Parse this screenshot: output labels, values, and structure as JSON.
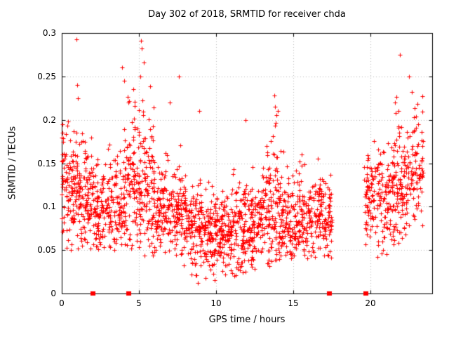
{
  "chart_data": {
    "type": "scatter",
    "title": "Day 302 of 2018, SRMTID for receiver chda",
    "xlabel": "GPS time / hours",
    "ylabel": "SRMTID / TECUs",
    "xlim": [
      0,
      24
    ],
    "ylim": [
      0,
      0.3
    ],
    "xticks": [
      0,
      5,
      10,
      15,
      20
    ],
    "xtick_labels": [
      "0",
      "5",
      "10",
      "15",
      "20"
    ],
    "yticks": [
      0,
      0.05,
      0.1,
      0.15,
      0.2,
      0.25,
      0.3
    ],
    "ytick_labels": [
      "0",
      "0.05",
      "0.1",
      "0.15",
      "0.2",
      "0.25",
      "0.3"
    ],
    "grid": true,
    "legend_position": "none",
    "marker": "plus",
    "marker_color": "#ff0000",
    "grid_color": "#b8b8b8",
    "border_color": "#000000",
    "seed": 302,
    "clusters": [
      {
        "x0": 0.0,
        "x1": 1.0,
        "n": 120,
        "mean": 0.125,
        "sd": 0.035,
        "ymin": 0.045,
        "ymax": 0.2
      },
      {
        "x0": 1.0,
        "x1": 2.0,
        "n": 115,
        "mean": 0.115,
        "sd": 0.035,
        "ymin": 0.05,
        "ymax": 0.22
      },
      {
        "x0": 2.0,
        "x1": 3.0,
        "n": 100,
        "mean": 0.1,
        "sd": 0.03,
        "ymin": 0.05,
        "ymax": 0.17
      },
      {
        "x0": 3.0,
        "x1": 4.0,
        "n": 100,
        "mean": 0.105,
        "sd": 0.033,
        "ymin": 0.05,
        "ymax": 0.22
      },
      {
        "x0": 4.0,
        "x1": 5.0,
        "n": 115,
        "mean": 0.13,
        "sd": 0.045,
        "ymin": 0.05,
        "ymax": 0.26
      },
      {
        "x0": 5.0,
        "x1": 6.0,
        "n": 115,
        "mean": 0.12,
        "sd": 0.05,
        "ymin": 0.04,
        "ymax": 0.29
      },
      {
        "x0": 6.0,
        "x1": 7.0,
        "n": 100,
        "mean": 0.092,
        "sd": 0.028,
        "ymin": 0.04,
        "ymax": 0.17
      },
      {
        "x0": 7.0,
        "x1": 8.0,
        "n": 100,
        "mean": 0.09,
        "sd": 0.03,
        "ymin": 0.03,
        "ymax": 0.18
      },
      {
        "x0": 8.0,
        "x1": 9.0,
        "n": 110,
        "mean": 0.08,
        "sd": 0.028,
        "ymin": 0.02,
        "ymax": 0.16
      },
      {
        "x0": 9.0,
        "x1": 10.0,
        "n": 110,
        "mean": 0.073,
        "sd": 0.024,
        "ymin": 0.02,
        "ymax": 0.15
      },
      {
        "x0": 10.0,
        "x1": 11.0,
        "n": 110,
        "mean": 0.07,
        "sd": 0.023,
        "ymin": 0.025,
        "ymax": 0.14
      },
      {
        "x0": 11.0,
        "x1": 12.0,
        "n": 110,
        "mean": 0.074,
        "sd": 0.027,
        "ymin": 0.02,
        "ymax": 0.16
      },
      {
        "x0": 12.0,
        "x1": 13.0,
        "n": 110,
        "mean": 0.08,
        "sd": 0.03,
        "ymin": 0.03,
        "ymax": 0.2
      },
      {
        "x0": 13.0,
        "x1": 14.0,
        "n": 115,
        "mean": 0.098,
        "sd": 0.04,
        "ymin": 0.03,
        "ymax": 0.23
      },
      {
        "x0": 14.0,
        "x1": 15.0,
        "n": 105,
        "mean": 0.088,
        "sd": 0.032,
        "ymin": 0.03,
        "ymax": 0.18
      },
      {
        "x0": 15.0,
        "x1": 16.0,
        "n": 100,
        "mean": 0.085,
        "sd": 0.028,
        "ymin": 0.04,
        "ymax": 0.16
      },
      {
        "x0": 16.0,
        "x1": 17.0,
        "n": 100,
        "mean": 0.09,
        "sd": 0.028,
        "ymin": 0.04,
        "ymax": 0.16
      },
      {
        "x0": 17.0,
        "x1": 17.5,
        "n": 55,
        "mean": 0.088,
        "sd": 0.025,
        "ymin": 0.04,
        "ymax": 0.14
      },
      {
        "x0": 19.6,
        "x1": 20.3,
        "n": 70,
        "mean": 0.11,
        "sd": 0.035,
        "ymin": 0.05,
        "ymax": 0.18
      },
      {
        "x0": 20.3,
        "x1": 21.3,
        "n": 90,
        "mean": 0.105,
        "sd": 0.035,
        "ymin": 0.04,
        "ymax": 0.19
      },
      {
        "x0": 21.3,
        "x1": 22.3,
        "n": 115,
        "mean": 0.13,
        "sd": 0.04,
        "ymin": 0.05,
        "ymax": 0.23
      },
      {
        "x0": 22.3,
        "x1": 23.4,
        "n": 100,
        "mean": 0.14,
        "sd": 0.038,
        "ymin": 0.06,
        "ymax": 0.23
      }
    ],
    "outliers": [
      [
        0.95,
        0.293
      ],
      [
        1.0,
        0.24
      ],
      [
        1.05,
        0.225
      ],
      [
        0.05,
        0.195
      ],
      [
        3.9,
        0.26
      ],
      [
        4.05,
        0.245
      ],
      [
        4.3,
        0.22
      ],
      [
        5.1,
        0.25
      ],
      [
        5.15,
        0.291
      ],
      [
        5.2,
        0.282
      ],
      [
        5.3,
        0.266
      ],
      [
        7.0,
        0.22
      ],
      [
        7.6,
        0.25
      ],
      [
        8.9,
        0.21
      ],
      [
        11.9,
        0.2
      ],
      [
        13.75,
        0.228
      ],
      [
        13.8,
        0.215
      ],
      [
        13.9,
        0.205
      ],
      [
        14.0,
        0.21
      ],
      [
        21.6,
        0.22
      ],
      [
        21.9,
        0.275
      ],
      [
        22.5,
        0.25
      ],
      [
        22.7,
        0.232
      ]
    ],
    "low_points": [
      [
        7.9,
        0.032
      ],
      [
        8.4,
        0.022
      ],
      [
        8.8,
        0.012
      ],
      [
        9.3,
        0.018
      ],
      [
        9.9,
        0.015
      ],
      [
        10.6,
        0.022
      ],
      [
        11.2,
        0.02
      ],
      [
        11.9,
        0.025
      ],
      [
        12.5,
        0.028
      ]
    ],
    "axis_markers": [
      2.0,
      4.3,
      17.3,
      19.7
    ]
  }
}
